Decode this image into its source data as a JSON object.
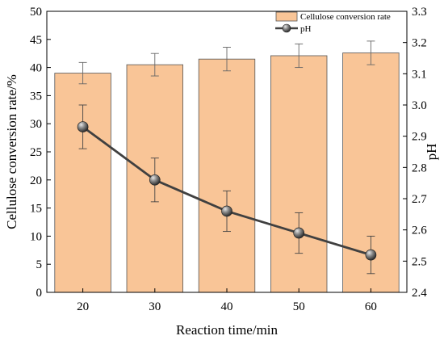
{
  "chart_data": {
    "type": "bar",
    "categories": [
      "20",
      "30",
      "40",
      "50",
      "60"
    ],
    "xlabel": "Reaction time/min",
    "ylabel": "Cellulose conversion rate/%",
    "y2label": "pH",
    "ylim": [
      0,
      50
    ],
    "y2lim": [
      2.4,
      3.3
    ],
    "yticks": [
      "0",
      "5",
      "10",
      "15",
      "20",
      "25",
      "30",
      "35",
      "40",
      "45",
      "50"
    ],
    "y2ticks": [
      "2.4",
      "2.5",
      "2.6",
      "2.7",
      "2.8",
      "2.9",
      "3.0",
      "3.1",
      "3.2",
      "3.3"
    ],
    "grid": false,
    "legend_position": "top-right",
    "series": [
      {
        "name": "Cellulose conversion rate",
        "type": "bar",
        "axis": "left",
        "color": "#F9C597",
        "values": [
          39.0,
          40.5,
          41.5,
          42.1,
          42.6
        ],
        "errors": [
          1.9,
          2.0,
          2.1,
          2.1,
          2.1
        ]
      },
      {
        "name": "pH",
        "type": "line",
        "axis": "right",
        "color": "#404040",
        "values": [
          2.93,
          2.76,
          2.66,
          2.59,
          2.52
        ],
        "errors": [
          0.07,
          0.07,
          0.065,
          0.065,
          0.06
        ]
      }
    ]
  }
}
